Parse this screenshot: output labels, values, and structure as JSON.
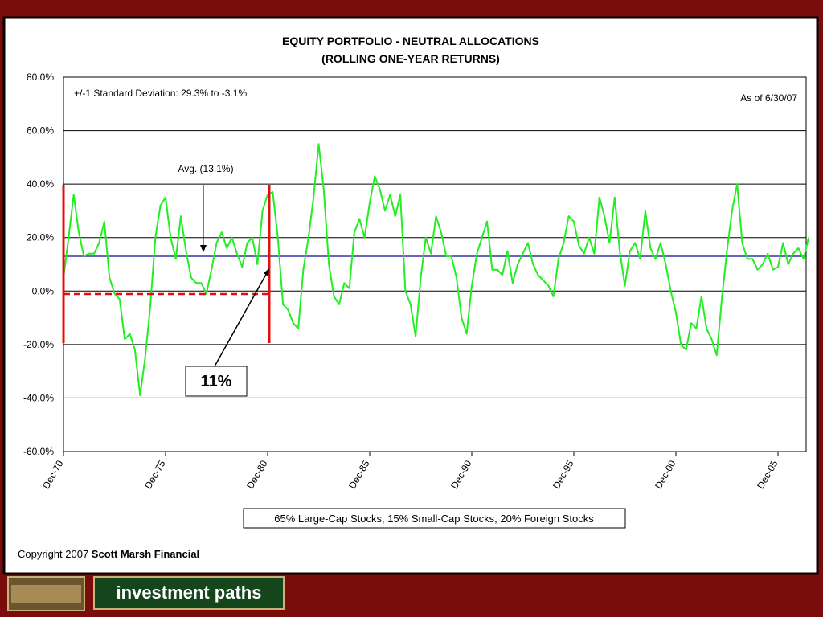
{
  "chart_data": {
    "type": "line",
    "title": "EQUITY PORTFOLIO - NEUTRAL ALLOCATIONS",
    "subtitle": "(ROLLING ONE-YEAR RETURNS)",
    "annotations": [
      "+/-1 Standard Deviation: 29.3% to -3.1%",
      "As of 6/30/07",
      "Avg. (13.1%)",
      "11%"
    ],
    "categories": [
      "Dec-70",
      null,
      null,
      null,
      null,
      null,
      null,
      null,
      null,
      null,
      null,
      null,
      null,
      null,
      null,
      null,
      null,
      null,
      null,
      null,
      "Dec-75",
      null,
      null,
      null,
      null,
      null,
      null,
      null,
      null,
      null,
      null,
      null,
      null,
      null,
      null,
      null,
      null,
      null,
      null,
      null,
      "Dec-80",
      null,
      null,
      null,
      null,
      null,
      null,
      null,
      null,
      null,
      null,
      null,
      null,
      null,
      null,
      null,
      null,
      null,
      null,
      null,
      "Dec-85",
      null,
      null,
      null,
      null,
      null,
      null,
      null,
      null,
      null,
      null,
      null,
      null,
      null,
      null,
      null,
      null,
      null,
      null,
      null,
      "Dec-90",
      null,
      null,
      null,
      null,
      null,
      null,
      null,
      null,
      null,
      null,
      null,
      null,
      null,
      null,
      null,
      null,
      null,
      null,
      null,
      "Dec-95",
      null,
      null,
      null,
      null,
      null,
      null,
      null,
      null,
      null,
      null,
      null,
      null,
      null,
      null,
      null,
      null,
      null,
      null,
      null,
      "Dec-00",
      null,
      null,
      null,
      null,
      null,
      null,
      null,
      null,
      null,
      null,
      null,
      null,
      null,
      null,
      null,
      null,
      null,
      null,
      null,
      "Dec-05",
      null,
      null,
      null,
      null,
      null,
      null
    ],
    "series": [
      {
        "name": "65% Large-Cap Stocks, 15% Small-Cap Stocks, 20% Foreign Stocks",
        "color": "#22ee22",
        "values": [
          5,
          20,
          36,
          22,
          13,
          14,
          14,
          18,
          26,
          5,
          -1,
          -3,
          -18,
          -16,
          -22,
          -39,
          -25,
          -6,
          20,
          32,
          35,
          20,
          12,
          28,
          15,
          5,
          3,
          3,
          -1,
          8,
          18,
          22,
          16,
          20,
          14,
          9,
          18,
          20,
          10,
          30,
          36,
          37,
          20,
          -5,
          -7,
          -12,
          -14,
          8,
          20,
          35,
          55,
          38,
          10,
          -2,
          -5,
          3,
          1,
          22,
          27,
          20,
          33,
          43,
          38,
          30,
          36,
          28,
          36,
          0,
          -5,
          -17,
          5,
          20,
          14,
          28,
          22,
          13,
          13,
          5,
          -10,
          -16,
          2,
          14,
          20,
          26,
          8,
          8,
          6,
          15,
          3,
          10,
          14,
          18,
          10,
          6,
          4,
          2,
          -2,
          12,
          18,
          28,
          26,
          17,
          14,
          20,
          14,
          35,
          28,
          18,
          35,
          15,
          2,
          15,
          18,
          12,
          30,
          16,
          12,
          18,
          10,
          0,
          -8,
          -20,
          -22,
          -12,
          -14,
          -2,
          -14,
          -18,
          -24,
          -3,
          15,
          30,
          40,
          18,
          12,
          12,
          8,
          10,
          14,
          8,
          9,
          18,
          10,
          14,
          16,
          12,
          20
        ]
      }
    ],
    "ylim": [
      -60,
      80
    ],
    "yticks": [
      {
        "value": -60,
        "label": "-60.0%"
      },
      {
        "value": -40,
        "label": "-40.0%"
      },
      {
        "value": -20,
        "label": "-20.0%"
      },
      {
        "value": 0,
        "label": "0.0%"
      },
      {
        "value": 20,
        "label": "20.0%"
      },
      {
        "value": 40,
        "label": "40.0%"
      },
      {
        "value": 60,
        "label": "60.0%"
      },
      {
        "value": 80,
        "label": "80.0%"
      }
    ],
    "grid": true,
    "copyright": "Copyright 2007",
    "company": "Scott Marsh Financial"
  },
  "banner": {
    "text": "investment paths"
  }
}
